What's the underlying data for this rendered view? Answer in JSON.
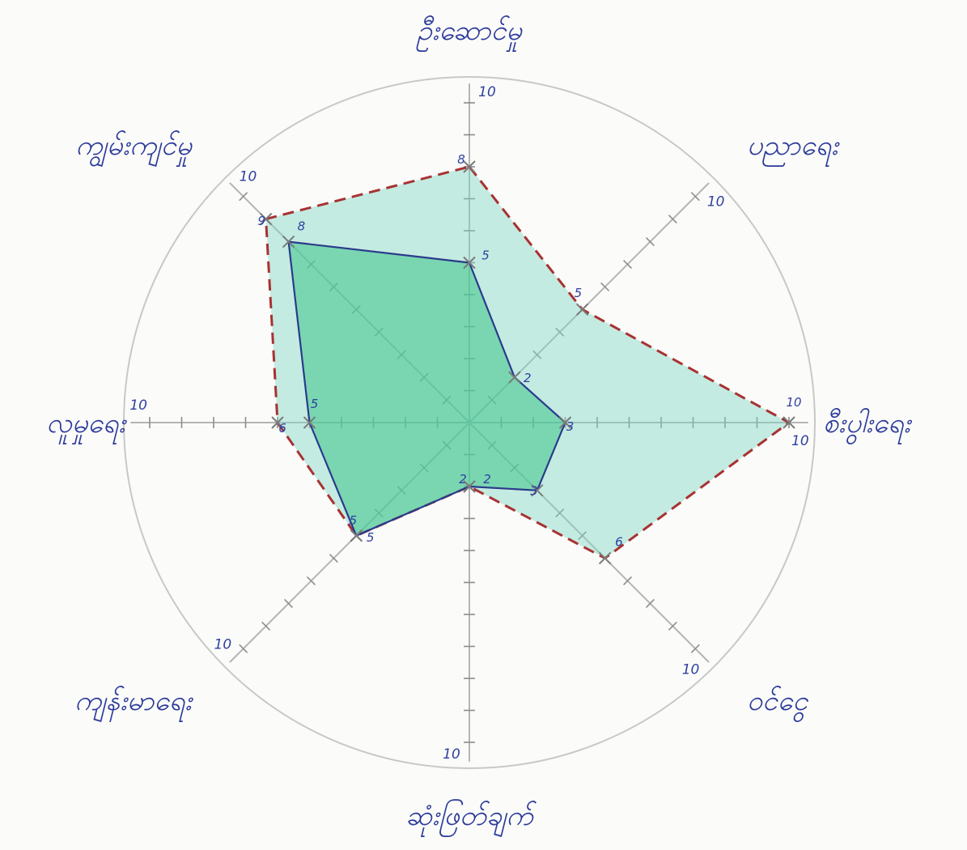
{
  "chart_data": {
    "type": "radar",
    "title": "",
    "axes": [
      {
        "label": "ဦးဆောင်မှု",
        "max_label": "10"
      },
      {
        "label": "ပညာရေး",
        "max_label": "10"
      },
      {
        "label": "စီးပွါးရေး",
        "max_label": "10"
      },
      {
        "label": "ဝင်ငွေ",
        "max_label": "10"
      },
      {
        "label": "ဆုံးဖြတ်ချက်",
        "max_label": "10"
      },
      {
        "label": "ကျန်းမာရေး",
        "max_label": "10"
      },
      {
        "label": "လူမှုရေး",
        "max_label": "10"
      },
      {
        "label": "ကျွမ်းကျင်မှု",
        "max_label": "10"
      }
    ],
    "range": [
      0,
      10
    ],
    "tick_step": 1,
    "series": [
      {
        "values": [
          5,
          2,
          3,
          3,
          2,
          5,
          5,
          8
        ],
        "point_labels": [
          "5",
          "2",
          "3",
          "3",
          "2",
          "5",
          "5",
          "8"
        ],
        "style": "solid",
        "color": "#2b3a8c",
        "fill": "#3cc48a"
      },
      {
        "values": [
          8,
          5,
          10,
          6,
          2,
          5,
          6,
          9
        ],
        "point_labels": [
          "8",
          "5",
          "10",
          "6",
          "2",
          "5",
          "6",
          "9"
        ],
        "style": "dashed",
        "color": "#a83232",
        "fill": "#7fd6c4"
      }
    ]
  }
}
